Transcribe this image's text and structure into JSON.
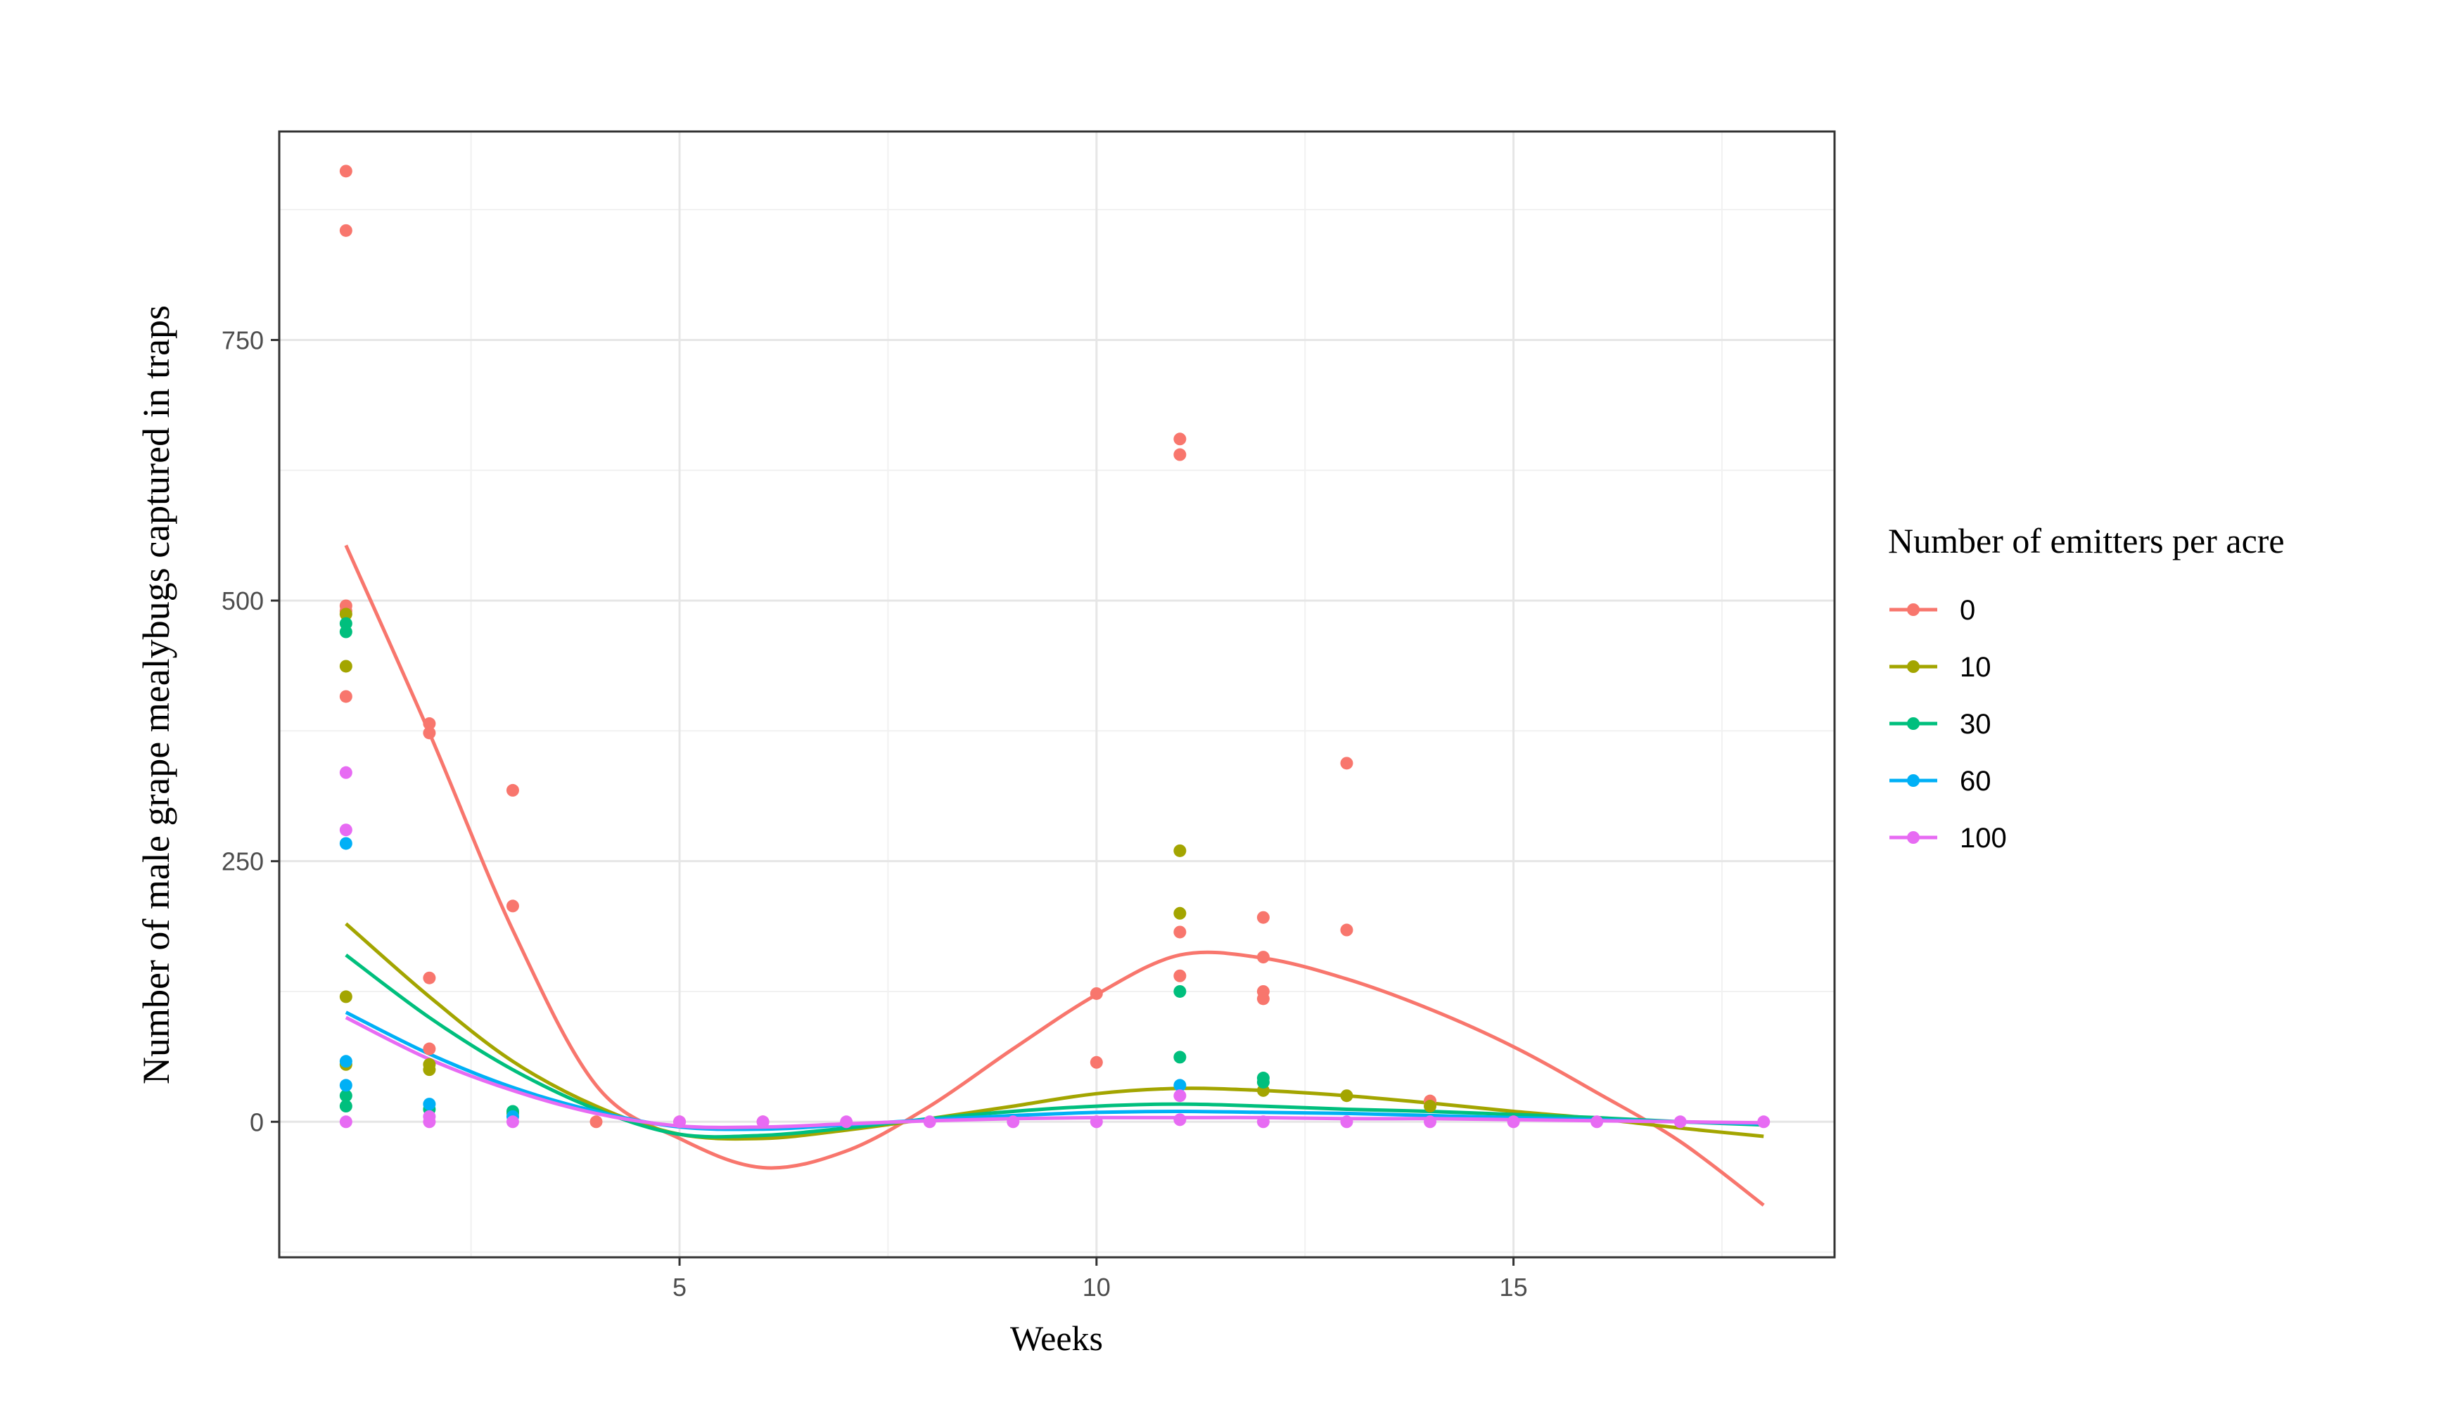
{
  "chart_data": {
    "type": "scatter",
    "title": "",
    "xlabel": "Weeks",
    "ylabel": "Number of male grape mealybugs captured in traps",
    "xlim": [
      0.2,
      18.85
    ],
    "ylim": [
      -130,
      950
    ],
    "x_ticks": [
      5,
      10,
      15
    ],
    "y_ticks": [
      0,
      250,
      500,
      750
    ],
    "grid": true,
    "legend": {
      "title": "Number of emitters per acre",
      "placement": "right"
    },
    "series": [
      {
        "name": "0",
        "color": "#F8766D",
        "points": [
          [
            1,
            912
          ],
          [
            1,
            855
          ],
          [
            1,
            495
          ],
          [
            1,
            490
          ],
          [
            1,
            408
          ],
          [
            2,
            382
          ],
          [
            2,
            373
          ],
          [
            2,
            138
          ],
          [
            2,
            70
          ],
          [
            3,
            318
          ],
          [
            3,
            207
          ],
          [
            4,
            0
          ],
          [
            5,
            0
          ],
          [
            6,
            0
          ],
          [
            10,
            123
          ],
          [
            10,
            57
          ],
          [
            11,
            655
          ],
          [
            11,
            640
          ],
          [
            11,
            182
          ],
          [
            11,
            140
          ],
          [
            12,
            196
          ],
          [
            12,
            158
          ],
          [
            12,
            125
          ],
          [
            12,
            118
          ],
          [
            13,
            344
          ],
          [
            13,
            184
          ],
          [
            14,
            20
          ]
        ],
        "trend": [
          [
            1,
            553
          ],
          [
            2,
            373
          ],
          [
            3,
            184
          ],
          [
            4,
            35
          ],
          [
            5,
            -16
          ],
          [
            6,
            -44
          ],
          [
            7,
            -28
          ],
          [
            8,
            15
          ],
          [
            9,
            70
          ],
          [
            10,
            122
          ],
          [
            11,
            160
          ],
          [
            12,
            157
          ],
          [
            13,
            137
          ],
          [
            14,
            108
          ],
          [
            15,
            72
          ],
          [
            16,
            28
          ],
          [
            17,
            -19
          ],
          [
            18,
            -80
          ]
        ]
      },
      {
        "name": "10",
        "color": "#A3A500",
        "points": [
          [
            1,
            487
          ],
          [
            1,
            437
          ],
          [
            1,
            120
          ],
          [
            1,
            55
          ],
          [
            2,
            55
          ],
          [
            2,
            50
          ],
          [
            3,
            8
          ],
          [
            11,
            260
          ],
          [
            11,
            200
          ],
          [
            12,
            30
          ],
          [
            13,
            25
          ],
          [
            14,
            15
          ]
        ],
        "trend": [
          [
            1,
            190
          ],
          [
            2,
            120
          ],
          [
            3,
            58
          ],
          [
            4,
            15
          ],
          [
            5,
            -12
          ],
          [
            6,
            -16
          ],
          [
            7,
            -8
          ],
          [
            8,
            3
          ],
          [
            9,
            15
          ],
          [
            10,
            27
          ],
          [
            11,
            32
          ],
          [
            12,
            30
          ],
          [
            13,
            25
          ],
          [
            14,
            18
          ],
          [
            15,
            10
          ],
          [
            16,
            3
          ],
          [
            17,
            -6
          ],
          [
            18,
            -14
          ]
        ]
      },
      {
        "name": "30",
        "color": "#00BF7D",
        "points": [
          [
            1,
            478
          ],
          [
            1,
            470
          ],
          [
            1,
            25
          ],
          [
            1,
            15
          ],
          [
            2,
            12
          ],
          [
            3,
            10
          ],
          [
            11,
            125
          ],
          [
            11,
            62
          ],
          [
            12,
            42
          ],
          [
            12,
            38
          ]
        ],
        "trend": [
          [
            1,
            160
          ],
          [
            2,
            100
          ],
          [
            3,
            50
          ],
          [
            4,
            12
          ],
          [
            5,
            -12
          ],
          [
            6,
            -13
          ],
          [
            7,
            -6
          ],
          [
            8,
            3
          ],
          [
            9,
            10
          ],
          [
            10,
            15
          ],
          [
            11,
            17
          ],
          [
            12,
            15
          ],
          [
            13,
            12
          ],
          [
            14,
            10
          ],
          [
            15,
            7
          ],
          [
            16,
            4
          ],
          [
            17,
            0
          ],
          [
            18,
            -3
          ]
        ]
      },
      {
        "name": "60",
        "color": "#00B0F6",
        "points": [
          [
            1,
            267
          ],
          [
            1,
            58
          ],
          [
            1,
            35
          ],
          [
            2,
            17
          ],
          [
            3,
            5
          ],
          [
            11,
            35
          ]
        ],
        "trend": [
          [
            1,
            105
          ],
          [
            2,
            65
          ],
          [
            3,
            33
          ],
          [
            4,
            10
          ],
          [
            5,
            -5
          ],
          [
            6,
            -7
          ],
          [
            7,
            -3
          ],
          [
            8,
            2
          ],
          [
            9,
            6
          ],
          [
            10,
            9
          ],
          [
            11,
            10
          ],
          [
            12,
            9
          ],
          [
            13,
            8
          ],
          [
            14,
            6
          ],
          [
            15,
            4
          ],
          [
            16,
            2
          ],
          [
            17,
            0
          ],
          [
            18,
            -2
          ]
        ]
      },
      {
        "name": "100",
        "color": "#E76BF3",
        "points": [
          [
            1,
            335
          ],
          [
            1,
            280
          ],
          [
            1,
            0
          ],
          [
            2,
            5
          ],
          [
            2,
            0
          ],
          [
            3,
            0
          ],
          [
            5,
            0
          ],
          [
            6,
            0
          ],
          [
            7,
            0
          ],
          [
            8,
            0
          ],
          [
            9,
            0
          ],
          [
            10,
            0
          ],
          [
            11,
            25
          ],
          [
            11,
            2
          ],
          [
            12,
            0
          ],
          [
            13,
            0
          ],
          [
            14,
            0
          ],
          [
            15,
            0
          ],
          [
            16,
            0
          ],
          [
            17,
            0
          ],
          [
            18,
            0
          ]
        ],
        "trend": [
          [
            1,
            100
          ],
          [
            2,
            60
          ],
          [
            3,
            30
          ],
          [
            4,
            8
          ],
          [
            5,
            -4
          ],
          [
            6,
            -5
          ],
          [
            7,
            -2
          ],
          [
            8,
            1
          ],
          [
            9,
            3
          ],
          [
            10,
            4
          ],
          [
            11,
            4
          ],
          [
            12,
            4
          ],
          [
            13,
            3
          ],
          [
            14,
            3
          ],
          [
            15,
            2
          ],
          [
            16,
            1
          ],
          [
            17,
            0
          ],
          [
            18,
            -1
          ]
        ]
      }
    ]
  }
}
